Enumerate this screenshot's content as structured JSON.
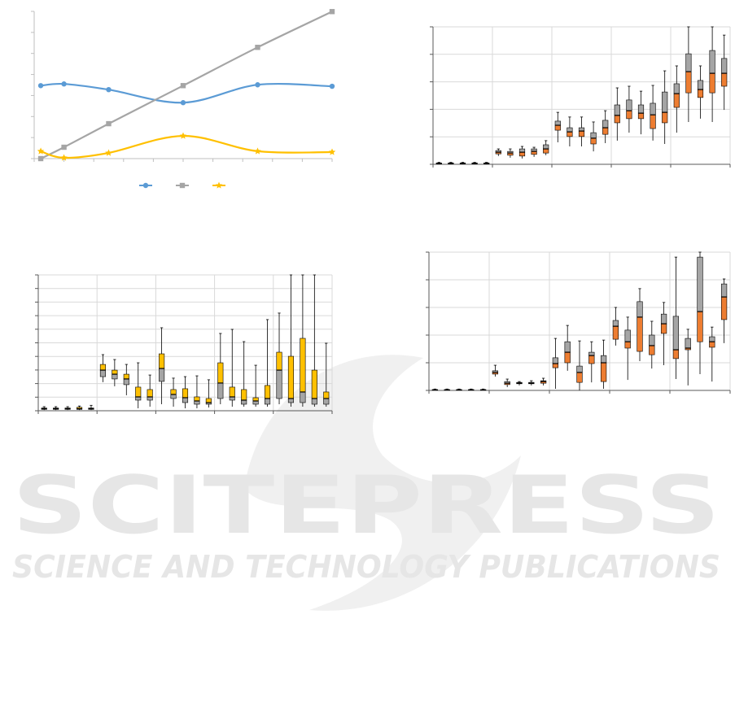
{
  "watermark": {
    "title": "SCITEPRESS",
    "subtitle": "SCIENCE AND TECHNOLOGY PUBLICATIONS"
  },
  "chart_data": [
    {
      "type": "line",
      "xlim": [
        0,
        10
      ],
      "xticks": [
        0,
        1,
        2,
        3,
        4,
        5,
        6,
        7,
        8,
        9,
        10
      ],
      "ylim": [
        0,
        7
      ],
      "yticks": [
        0,
        1,
        2,
        3,
        4,
        5,
        6,
        7
      ],
      "grid": false,
      "x": [
        0.22,
        1,
        2.5,
        5,
        7.5,
        10
      ],
      "series": [
        {
          "color": "#5b9bd5",
          "marker": "circle",
          "values": [
            3.47,
            3.55,
            3.28,
            2.66,
            3.51,
            3.44
          ]
        },
        {
          "color": "#a5a5a5",
          "marker": "square",
          "values": [
            0,
            0.54,
            1.66,
            3.47,
            5.29,
            6.99
          ]
        },
        {
          "color": "#ffc000",
          "marker": "star",
          "values": [
            0.35,
            0.04,
            0.27,
            1.08,
            0.35,
            0.31
          ]
        }
      ]
    },
    {
      "type": "box",
      "ylim": [
        0,
        5
      ],
      "yticks": [
        0,
        1,
        2,
        3,
        4,
        5
      ],
      "grid": true,
      "group_size": 5,
      "colors": [
        "#ed7d31",
        "#a5a5a5"
      ],
      "boxes": [
        [
          0,
          0.02,
          0.03,
          0.05,
          0.07
        ],
        [
          0,
          0.02,
          0.03,
          0.05,
          0.07
        ],
        [
          0,
          0.02,
          0.03,
          0.05,
          0.07
        ],
        [
          0,
          0.02,
          0.03,
          0.05,
          0.07
        ],
        [
          0,
          0.02,
          0.03,
          0.05,
          0.07
        ],
        [
          0.3,
          0.38,
          0.44,
          0.5,
          0.56
        ],
        [
          0.24,
          0.33,
          0.41,
          0.47,
          0.56
        ],
        [
          0.21,
          0.3,
          0.44,
          0.56,
          0.65
        ],
        [
          0.27,
          0.36,
          0.47,
          0.56,
          0.62
        ],
        [
          0.33,
          0.41,
          0.56,
          0.71,
          0.86
        ],
        [
          0.8,
          1.24,
          1.42,
          1.57,
          1.89
        ],
        [
          0.65,
          1.01,
          1.18,
          1.33,
          1.72
        ],
        [
          0.65,
          1.01,
          1.21,
          1.33,
          1.72
        ],
        [
          0.47,
          0.74,
          0.95,
          1.15,
          1.54
        ],
        [
          0.77,
          1.09,
          1.33,
          1.6,
          1.95
        ],
        [
          0.86,
          1.51,
          1.78,
          2.16,
          2.78
        ],
        [
          1.15,
          1.66,
          1.95,
          2.34,
          2.84
        ],
        [
          1.09,
          1.66,
          1.86,
          2.16,
          2.66
        ],
        [
          0.86,
          1.3,
          1.8,
          2.22,
          2.87
        ],
        [
          0.74,
          1.51,
          1.89,
          2.63,
          3.4
        ],
        [
          1.15,
          2.07,
          2.57,
          2.93,
          3.58
        ],
        [
          1.54,
          2.6,
          3.37,
          4.02,
          5.0
        ],
        [
          1.66,
          2.43,
          2.72,
          3.05,
          3.58
        ],
        [
          1.54,
          2.6,
          3.31,
          4.14,
          5.0
        ],
        [
          1.98,
          2.84,
          3.31,
          3.85,
          4.7
        ]
      ]
    },
    {
      "type": "box",
      "ylim": [
        0,
        10
      ],
      "yticks": [
        0,
        1,
        2,
        3,
        4,
        5,
        6,
        7,
        8,
        9,
        10
      ],
      "grid": true,
      "group_size": 5,
      "colors": [
        "#a5a5a5",
        "#ffc000"
      ],
      "boxes": [
        [
          0.05,
          0.1,
          0.15,
          0.2,
          0.3
        ],
        [
          0.05,
          0.1,
          0.15,
          0.2,
          0.3
        ],
        [
          0.05,
          0.1,
          0.15,
          0.2,
          0.3
        ],
        [
          0.05,
          0.1,
          0.15,
          0.25,
          0.35
        ],
        [
          0.05,
          0.1,
          0.15,
          0.2,
          0.4
        ],
        [
          2.1,
          2.51,
          2.99,
          3.41,
          4.13
        ],
        [
          1.8,
          2.34,
          2.69,
          2.99,
          3.77
        ],
        [
          1.14,
          1.92,
          2.34,
          2.69,
          3.41
        ],
        [
          0.18,
          0.78,
          1.02,
          1.74,
          3.53
        ],
        [
          0.3,
          0.78,
          1.02,
          1.56,
          2.63
        ],
        [
          0.48,
          2.16,
          3.11,
          4.19,
          6.11
        ],
        [
          0.3,
          0.9,
          1.2,
          1.56,
          2.4
        ],
        [
          0.18,
          0.6,
          0.96,
          1.62,
          2.51
        ],
        [
          0.18,
          0.48,
          0.72,
          1.02,
          2.57
        ],
        [
          0.24,
          0.48,
          0.6,
          0.9,
          2.28
        ],
        [
          0.48,
          0.9,
          2.04,
          3.53,
          5.69
        ],
        [
          0.3,
          0.78,
          1.02,
          1.74,
          5.99
        ],
        [
          0.3,
          0.48,
          0.78,
          1.56,
          5.09
        ],
        [
          0.3,
          0.48,
          0.72,
          0.96,
          3.35
        ],
        [
          0.3,
          0.48,
          0.9,
          1.86,
          6.71
        ],
        [
          0.48,
          0.9,
          2.99,
          4.31,
          7.19
        ],
        [
          0.3,
          0.6,
          0.9,
          4.01,
          10
        ],
        [
          0.3,
          0.6,
          1.38,
          5.33,
          10
        ],
        [
          0.3,
          0.48,
          0.9,
          2.99,
          10
        ],
        [
          0.3,
          0.48,
          0.9,
          1.38,
          4.97
        ]
      ]
    },
    {
      "type": "box",
      "ylim": [
        0,
        5
      ],
      "yticks": [
        0,
        1,
        2,
        3,
        4,
        5
      ],
      "grid": true,
      "group_size": 5,
      "colors": [
        "#ed7d31",
        "#a5a5a5"
      ],
      "boxes": [
        [
          0,
          0.01,
          0.02,
          0.03,
          0.05
        ],
        [
          0,
          0.01,
          0.02,
          0.03,
          0.05
        ],
        [
          0,
          0.01,
          0.02,
          0.03,
          0.05
        ],
        [
          0,
          0.01,
          0.02,
          0.03,
          0.05
        ],
        [
          0,
          0.01,
          0.02,
          0.03,
          0.05
        ],
        [
          0.5,
          0.59,
          0.65,
          0.71,
          0.91
        ],
        [
          0.12,
          0.21,
          0.26,
          0.32,
          0.41
        ],
        [
          0.18,
          0.24,
          0.26,
          0.29,
          0.32
        ],
        [
          0.18,
          0.24,
          0.26,
          0.29,
          0.35
        ],
        [
          0.18,
          0.26,
          0.32,
          0.35,
          0.44
        ],
        [
          0.06,
          0.82,
          0.97,
          1.18,
          1.88
        ],
        [
          0.71,
          1.0,
          1.38,
          1.76,
          2.35
        ],
        [
          0,
          0.29,
          0.65,
          0.88,
          1.79
        ],
        [
          0.29,
          0.97,
          1.26,
          1.38,
          1.76
        ],
        [
          0.06,
          0.32,
          1.0,
          1.26,
          1.82
        ],
        [
          1.62,
          1.85,
          2.32,
          2.53,
          3.0
        ],
        [
          0.38,
          1.53,
          1.76,
          2.18,
          2.65
        ],
        [
          1.06,
          1.41,
          2.65,
          3.21,
          3.68
        ],
        [
          0.79,
          1.29,
          1.62,
          2.0,
          2.5
        ],
        [
          0.91,
          2.06,
          2.41,
          2.76,
          3.18
        ],
        [
          0.41,
          1.15,
          1.47,
          2.68,
          4.82
        ],
        [
          0.18,
          1.47,
          1.53,
          1.88,
          2.21
        ],
        [
          0.59,
          1.76,
          2.85,
          4.82,
          5.0
        ],
        [
          0.32,
          1.56,
          1.76,
          1.94,
          2.29
        ],
        [
          1.71,
          2.56,
          3.38,
          3.85,
          4.03
        ]
      ]
    }
  ]
}
